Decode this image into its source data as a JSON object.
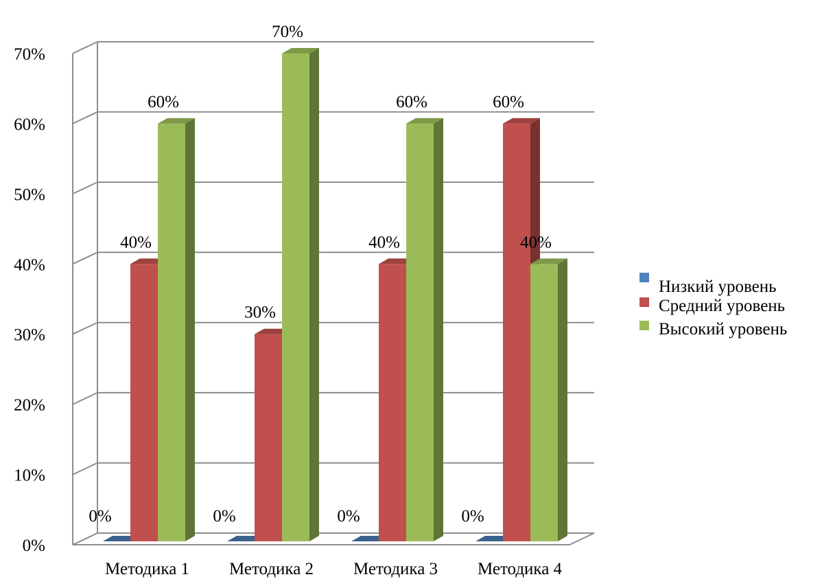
{
  "chart_data": {
    "type": "bar",
    "categories": [
      "Методика 1",
      "Методика 2",
      "Методика  3",
      "Методика 4"
    ],
    "series": [
      {
        "name": "Низкий уровень",
        "values": [
          0,
          0,
          0,
          0
        ],
        "color": "#4F81BD",
        "labels": [
          "0%",
          "0%",
          "0%",
          "0%"
        ]
      },
      {
        "name": "Средний уровень",
        "values": [
          40,
          30,
          40,
          60
        ],
        "color": "#C0504D",
        "labels": [
          "40%",
          "30%",
          "40%",
          "60%"
        ]
      },
      {
        "name": "Высокий уровень",
        "values": [
          60,
          70,
          60,
          40
        ],
        "color": "#9BBB59",
        "labels": [
          "60%",
          "70%",
          "60%",
          "40%"
        ]
      }
    ],
    "ylim": [
      0,
      70
    ],
    "yticks": [
      "0%",
      "10%",
      "20%",
      "30%",
      "40%",
      "50%",
      "60%",
      "70%"
    ],
    "grid": true,
    "legend_position": "right",
    "style": "3d-column"
  }
}
